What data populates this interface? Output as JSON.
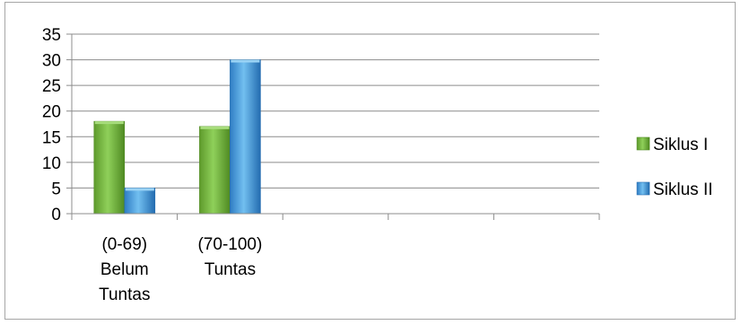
{
  "chart_data": {
    "type": "bar",
    "title": "",
    "xlabel": "",
    "ylabel": "",
    "ylim": [
      0,
      35
    ],
    "yticks": [
      "0",
      "5",
      "10",
      "15",
      "20",
      "25",
      "30",
      "35"
    ],
    "grid": true,
    "legend_position": "right",
    "categories": [
      [
        "(0-69)",
        "Belum",
        "Tuntas"
      ],
      [
        "(70-100)",
        "Tuntas"
      ],
      [],
      [],
      []
    ],
    "series": [
      {
        "name": "Siklus I",
        "color": "#77b843",
        "values": [
          18,
          17,
          null,
          null,
          null
        ]
      },
      {
        "name": "Siklus II",
        "color": "#4a9fdd",
        "values": [
          5,
          30,
          null,
          null,
          null
        ]
      }
    ]
  }
}
